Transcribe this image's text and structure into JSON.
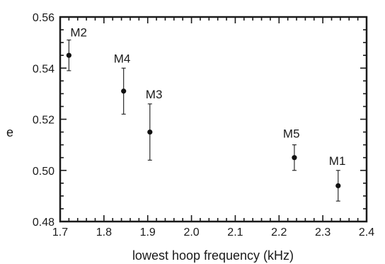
{
  "chart_data": {
    "type": "scatter",
    "title": "",
    "xlabel": "lowest hoop frequency (kHz)",
    "ylabel": "e",
    "xlim": [
      1.7,
      2.4
    ],
    "ylim": [
      0.48,
      0.56
    ],
    "x_ticks": [
      "1.7",
      "1.8",
      "1.9",
      "2.0",
      "2.1",
      "2.2",
      "2.3",
      "2.4"
    ],
    "y_ticks": [
      "0.48",
      "0.50",
      "0.52",
      "0.54",
      "0.56"
    ],
    "grid": false,
    "error_bars": true,
    "points": [
      {
        "label": "M2",
        "x": 1.72,
        "y": 0.545,
        "err_low": 0.539,
        "err_high": 0.551
      },
      {
        "label": "M4",
        "x": 1.845,
        "y": 0.531,
        "err_low": 0.522,
        "err_high": 0.54
      },
      {
        "label": "M3",
        "x": 1.905,
        "y": 0.515,
        "err_low": 0.504,
        "err_high": 0.526
      },
      {
        "label": "M5",
        "x": 2.235,
        "y": 0.505,
        "err_low": 0.5,
        "err_high": 0.51
      },
      {
        "label": "M1",
        "x": 2.335,
        "y": 0.494,
        "err_low": 0.488,
        "err_high": 0.5
      }
    ]
  }
}
